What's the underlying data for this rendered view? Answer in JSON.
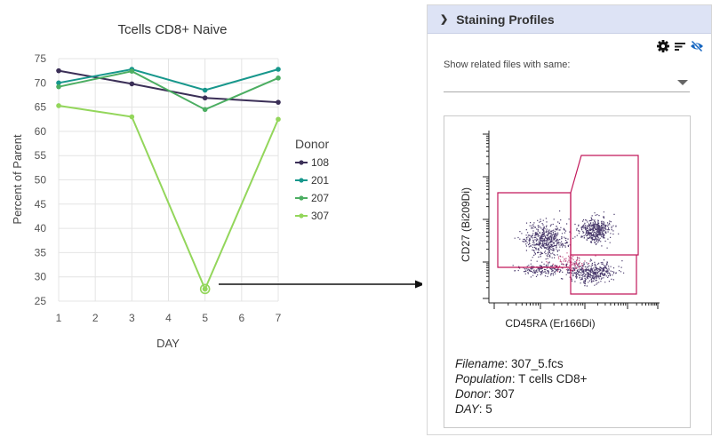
{
  "chart_data": {
    "type": "line",
    "title": "Tcells CD8+ Naive",
    "xlabel": "DAY",
    "ylabel": "Percent of Parent",
    "x_ticks": [
      1,
      2,
      3,
      4,
      5,
      6,
      7
    ],
    "y_ticks": [
      25,
      30,
      35,
      40,
      45,
      50,
      55,
      60,
      65,
      70,
      75
    ],
    "xlim": [
      1,
      7
    ],
    "ylim": [
      25,
      75
    ],
    "legend_title": "Donor",
    "legend_position": "right",
    "highlighted_point": {
      "series": "307",
      "x": 5,
      "y": 27.5
    },
    "series": [
      {
        "name": "108",
        "color": "#3b2f57",
        "x": [
          1,
          3,
          5,
          7
        ],
        "values": [
          72.5,
          69.8,
          66.9,
          66.0
        ]
      },
      {
        "name": "201",
        "color": "#17978c",
        "x": [
          1,
          3,
          5,
          7
        ],
        "values": [
          70.0,
          72.8,
          68.5,
          72.8
        ]
      },
      {
        "name": "207",
        "color": "#4cae62",
        "x": [
          1,
          3,
          5,
          7
        ],
        "values": [
          69.2,
          72.4,
          64.5,
          71.0
        ]
      },
      {
        "name": "307",
        "color": "#93d65b",
        "x": [
          1,
          3,
          5,
          7
        ],
        "values": [
          65.3,
          63.0,
          27.5,
          62.5
        ]
      }
    ]
  },
  "panel": {
    "title": "Staining Profiles",
    "related_label": "Show related files with same:",
    "related_value": "",
    "icons": [
      "gear-icon",
      "sort-icon",
      "eye-off-icon"
    ]
  },
  "scatter": {
    "x_label": "CD45RA (Er166Di)",
    "y_label": "CD27 (Bi209Di)",
    "gate_color": "#c2185b"
  },
  "file": {
    "filename_label": "Filename",
    "filename": "307_5.fcs",
    "population_label": "Population",
    "population": "T cells CD8+",
    "donor_label": "Donor",
    "donor": "307",
    "day_label": "DAY",
    "day": "5"
  }
}
